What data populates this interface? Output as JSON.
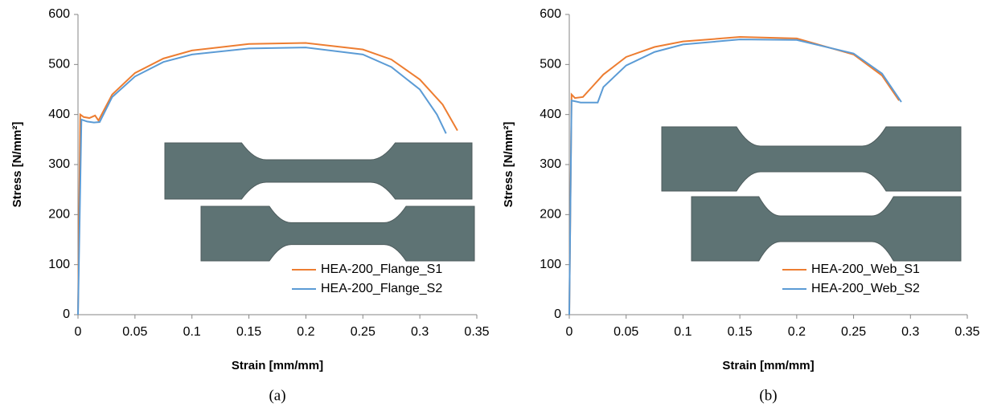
{
  "chart_data": [
    {
      "type": "line",
      "x_label": "Strain [mm/mm]",
      "y_label": "Stress [N/mm²]",
      "caption": "(a)",
      "xlim": [
        0,
        0.35
      ],
      "xticks": [
        0,
        0.05,
        0.1,
        0.15,
        0.2,
        0.25,
        0.3,
        0.35
      ],
      "ylim": [
        0,
        600
      ],
      "yticks": [
        0,
        100,
        200,
        300,
        400,
        500,
        600
      ],
      "legend": "lower right",
      "series": [
        {
          "name": "HEA-200_Flange_S1",
          "color": "#ed7d31",
          "x": [
            0,
            0.002,
            0.005,
            0.01,
            0.015,
            0.018,
            0.03,
            0.05,
            0.075,
            0.1,
            0.15,
            0.2,
            0.25,
            0.275,
            0.3,
            0.32,
            0.333
          ],
          "values": [
            0,
            400,
            395,
            393,
            398,
            388,
            440,
            483,
            512,
            528,
            541,
            543,
            530,
            510,
            470,
            420,
            368
          ]
        },
        {
          "name": "HEA-200_Flange_S2",
          "color": "#5b9bd5",
          "x": [
            0,
            0.003,
            0.008,
            0.014,
            0.019,
            0.03,
            0.05,
            0.075,
            0.1,
            0.15,
            0.2,
            0.25,
            0.275,
            0.3,
            0.315,
            0.323
          ],
          "values": [
            0,
            390,
            386,
            384,
            385,
            435,
            476,
            505,
            520,
            532,
            534,
            520,
            495,
            450,
            400,
            362
          ]
        }
      ]
    },
    {
      "type": "line",
      "x_label": "Strain [mm/mm]",
      "y_label": "Stress [N/mm²]",
      "caption": "(b)",
      "xlim": [
        0,
        0.35
      ],
      "xticks": [
        0,
        0.05,
        0.1,
        0.15,
        0.2,
        0.25,
        0.3,
        0.35
      ],
      "ylim": [
        0,
        600
      ],
      "yticks": [
        0,
        100,
        200,
        300,
        400,
        500,
        600
      ],
      "legend": "lower right",
      "series": [
        {
          "name": "HEA-200_Web_S1",
          "color": "#ed7d31",
          "x": [
            0,
            0.002,
            0.005,
            0.012,
            0.02,
            0.03,
            0.05,
            0.075,
            0.1,
            0.15,
            0.2,
            0.25,
            0.275,
            0.29
          ],
          "values": [
            0,
            440,
            433,
            435,
            455,
            480,
            515,
            535,
            546,
            555,
            552,
            520,
            478,
            428
          ]
        },
        {
          "name": "HEA-200_Web_S2",
          "color": "#5b9bd5",
          "x": [
            0,
            0.002,
            0.01,
            0.025,
            0.03,
            0.05,
            0.075,
            0.1,
            0.15,
            0.2,
            0.25,
            0.275,
            0.292
          ],
          "values": [
            0,
            428,
            424,
            424,
            455,
            498,
            525,
            540,
            550,
            549,
            522,
            482,
            425
          ]
        }
      ]
    }
  ]
}
